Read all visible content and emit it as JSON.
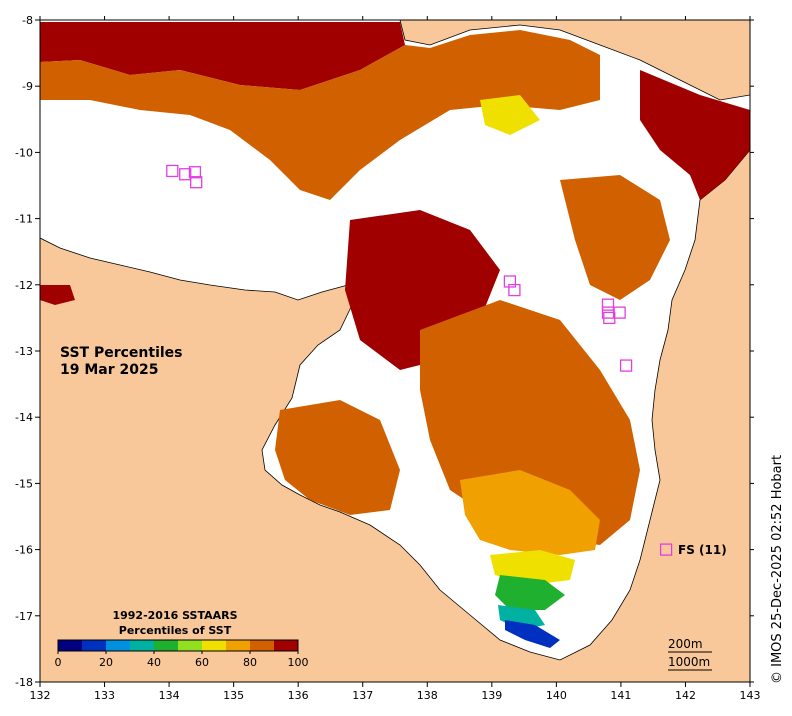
{
  "map": {
    "title_line1": "SST Percentiles",
    "title_line2": "19 Mar 2025",
    "credit": "© IMOS 25-Dec-2025 02:52 Hobart",
    "depth_contour_1": "200m",
    "depth_contour_2": "1000m",
    "station_label": "FS (11)",
    "lon_ticks": [
      "132",
      "133",
      "134",
      "135",
      "136",
      "137",
      "138",
      "139",
      "140",
      "141",
      "142",
      "143"
    ],
    "lat_ticks": [
      "-8",
      "-9",
      "-10",
      "-11",
      "-12",
      "-13",
      "-14",
      "-15",
      "-16",
      "-17",
      "-18"
    ],
    "lon_range": [
      132,
      143
    ],
    "lat_range": [
      -18,
      -8
    ],
    "colors": {
      "land": "#f9c89a",
      "cloud": "#ffffff",
      "marker": "#e040e0"
    }
  },
  "legend": {
    "title_line1": "1992-2016 SSTAARS",
    "title_line2": "Percentiles of SST",
    "ticks": [
      "0",
      "20",
      "40",
      "60",
      "80",
      "100"
    ],
    "colors": [
      "#000080",
      "#0030c0",
      "#0090e0",
      "#00b0a0",
      "#20b030",
      "#90e020",
      "#f0e000",
      "#f0a000",
      "#d06000",
      "#a00000"
    ]
  },
  "markers": [
    {
      "lon": 134.05,
      "lat": -10.28
    },
    {
      "lon": 134.25,
      "lat": -10.33
    },
    {
      "lon": 134.4,
      "lat": -10.3
    },
    {
      "lon": 134.42,
      "lat": -10.45
    },
    {
      "lon": 139.28,
      "lat": -11.95
    },
    {
      "lon": 139.35,
      "lat": -12.08
    },
    {
      "lon": 140.8,
      "lat": -12.3
    },
    {
      "lon": 140.8,
      "lat": -12.42
    },
    {
      "lon": 140.82,
      "lat": -12.5
    },
    {
      "lon": 140.98,
      "lat": -12.42
    },
    {
      "lon": 141.08,
      "lat": -13.22
    },
    {
      "lon": 141.7,
      "lat": -16.0
    }
  ]
}
